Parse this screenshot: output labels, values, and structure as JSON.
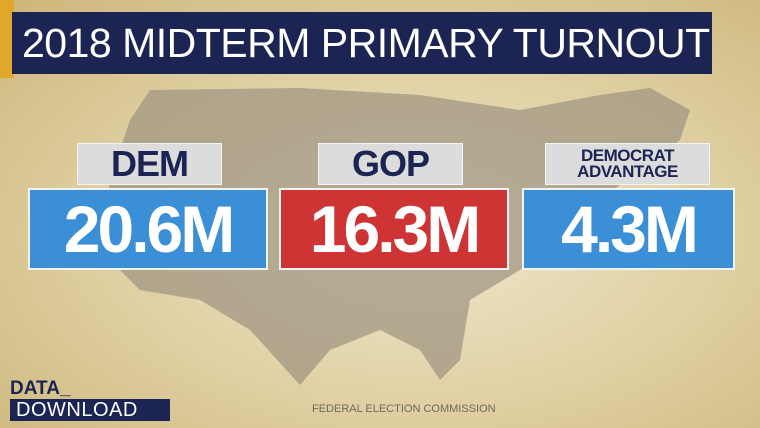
{
  "header": {
    "title": "2018 MIDTERM PRIMARY TURNOUT"
  },
  "cards": [
    {
      "label": "DEM",
      "value": "20.6M"
    },
    {
      "label": "GOP",
      "value": "16.3M"
    },
    {
      "label": "DEMOCRAT ADVANTAGE",
      "value": "4.3M"
    }
  ],
  "brand": {
    "line1": "DATA_",
    "line2": "DOWNLOAD"
  },
  "source": "FEDERAL ELECTION COMMISSION"
}
